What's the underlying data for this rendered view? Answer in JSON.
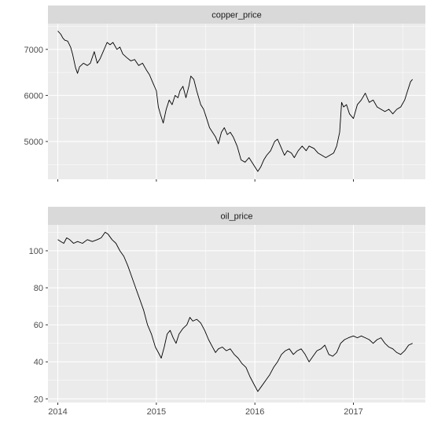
{
  "chart_data": {
    "type": "line",
    "x_ticks": [
      "2014",
      "2015",
      "2016",
      "2017"
    ],
    "x_range": [
      2013.9,
      2017.73
    ],
    "facets": [
      {
        "name": "copper_price",
        "ylim": [
          4180,
          7560
        ],
        "y_ticks": [
          5000,
          6000,
          7000
        ],
        "y_minor": [
          4500,
          5500,
          6500,
          7500
        ],
        "points": [
          [
            2014.0,
            7400
          ],
          [
            2014.03,
            7330
          ],
          [
            2014.05,
            7250
          ],
          [
            2014.07,
            7200
          ],
          [
            2014.1,
            7180
          ],
          [
            2014.13,
            7050
          ],
          [
            2014.15,
            6900
          ],
          [
            2014.18,
            6600
          ],
          [
            2014.2,
            6480
          ],
          [
            2014.22,
            6620
          ],
          [
            2014.26,
            6700
          ],
          [
            2014.3,
            6650
          ],
          [
            2014.33,
            6700
          ],
          [
            2014.37,
            6950
          ],
          [
            2014.4,
            6700
          ],
          [
            2014.43,
            6800
          ],
          [
            2014.46,
            6950
          ],
          [
            2014.5,
            7150
          ],
          [
            2014.53,
            7100
          ],
          [
            2014.56,
            7150
          ],
          [
            2014.6,
            7000
          ],
          [
            2014.63,
            7050
          ],
          [
            2014.66,
            6900
          ],
          [
            2014.7,
            6820
          ],
          [
            2014.74,
            6750
          ],
          [
            2014.78,
            6780
          ],
          [
            2014.82,
            6650
          ],
          [
            2014.86,
            6700
          ],
          [
            2014.9,
            6550
          ],
          [
            2014.93,
            6450
          ],
          [
            2014.96,
            6300
          ],
          [
            2015.0,
            6100
          ],
          [
            2015.02,
            5750
          ],
          [
            2015.04,
            5600
          ],
          [
            2015.07,
            5400
          ],
          [
            2015.1,
            5700
          ],
          [
            2015.13,
            5900
          ],
          [
            2015.16,
            5800
          ],
          [
            2015.19,
            6000
          ],
          [
            2015.22,
            5950
          ],
          [
            2015.24,
            6100
          ],
          [
            2015.27,
            6200
          ],
          [
            2015.3,
            5950
          ],
          [
            2015.33,
            6200
          ],
          [
            2015.35,
            6420
          ],
          [
            2015.38,
            6350
          ],
          [
            2015.41,
            6100
          ],
          [
            2015.45,
            5800
          ],
          [
            2015.48,
            5700
          ],
          [
            2015.51,
            5500
          ],
          [
            2015.54,
            5300
          ],
          [
            2015.57,
            5200
          ],
          [
            2015.6,
            5100
          ],
          [
            2015.63,
            4950
          ],
          [
            2015.66,
            5200
          ],
          [
            2015.69,
            5300
          ],
          [
            2015.72,
            5150
          ],
          [
            2015.75,
            5200
          ],
          [
            2015.78,
            5100
          ],
          [
            2015.82,
            4900
          ],
          [
            2015.86,
            4600
          ],
          [
            2015.9,
            4550
          ],
          [
            2015.94,
            4650
          ],
          [
            2015.97,
            4550
          ],
          [
            2016.0,
            4450
          ],
          [
            2016.03,
            4350
          ],
          [
            2016.06,
            4450
          ],
          [
            2016.09,
            4600
          ],
          [
            2016.12,
            4700
          ],
          [
            2016.16,
            4800
          ],
          [
            2016.2,
            5000
          ],
          [
            2016.23,
            5050
          ],
          [
            2016.26,
            4900
          ],
          [
            2016.3,
            4700
          ],
          [
            2016.33,
            4800
          ],
          [
            2016.37,
            4750
          ],
          [
            2016.4,
            4650
          ],
          [
            2016.44,
            4800
          ],
          [
            2016.48,
            4900
          ],
          [
            2016.52,
            4800
          ],
          [
            2016.55,
            4900
          ],
          [
            2016.6,
            4850
          ],
          [
            2016.64,
            4750
          ],
          [
            2016.68,
            4700
          ],
          [
            2016.72,
            4650
          ],
          [
            2016.76,
            4700
          ],
          [
            2016.8,
            4750
          ],
          [
            2016.83,
            4900
          ],
          [
            2016.86,
            5200
          ],
          [
            2016.88,
            5850
          ],
          [
            2016.9,
            5750
          ],
          [
            2016.93,
            5800
          ],
          [
            2016.96,
            5600
          ],
          [
            2017.0,
            5500
          ],
          [
            2017.04,
            5800
          ],
          [
            2017.08,
            5900
          ],
          [
            2017.12,
            6050
          ],
          [
            2017.16,
            5850
          ],
          [
            2017.2,
            5900
          ],
          [
            2017.24,
            5750
          ],
          [
            2017.28,
            5700
          ],
          [
            2017.32,
            5650
          ],
          [
            2017.36,
            5700
          ],
          [
            2017.4,
            5600
          ],
          [
            2017.44,
            5700
          ],
          [
            2017.48,
            5750
          ],
          [
            2017.52,
            5900
          ],
          [
            2017.55,
            6100
          ],
          [
            2017.58,
            6300
          ],
          [
            2017.6,
            6350
          ]
        ]
      },
      {
        "name": "oil_price",
        "ylim": [
          18,
          114
        ],
        "y_ticks": [
          20,
          40,
          60,
          80,
          100
        ],
        "y_minor": [
          30,
          50,
          70,
          90,
          110
        ],
        "points": [
          [
            2014.0,
            106
          ],
          [
            2014.03,
            105
          ],
          [
            2014.06,
            104
          ],
          [
            2014.09,
            107
          ],
          [
            2014.12,
            106
          ],
          [
            2014.16,
            104
          ],
          [
            2014.2,
            105
          ],
          [
            2014.25,
            104
          ],
          [
            2014.3,
            106
          ],
          [
            2014.35,
            105
          ],
          [
            2014.4,
            106
          ],
          [
            2014.44,
            107
          ],
          [
            2014.48,
            110
          ],
          [
            2014.51,
            109
          ],
          [
            2014.55,
            106
          ],
          [
            2014.59,
            104
          ],
          [
            2014.63,
            100
          ],
          [
            2014.67,
            97
          ],
          [
            2014.71,
            92
          ],
          [
            2014.75,
            86
          ],
          [
            2014.79,
            80
          ],
          [
            2014.83,
            74
          ],
          [
            2014.87,
            68
          ],
          [
            2014.91,
            60
          ],
          [
            2014.95,
            55
          ],
          [
            2014.99,
            48
          ],
          [
            2015.02,
            45
          ],
          [
            2015.05,
            42
          ],
          [
            2015.08,
            48
          ],
          [
            2015.11,
            55
          ],
          [
            2015.14,
            57
          ],
          [
            2015.17,
            53
          ],
          [
            2015.2,
            50
          ],
          [
            2015.23,
            55
          ],
          [
            2015.27,
            58
          ],
          [
            2015.31,
            60
          ],
          [
            2015.34,
            64
          ],
          [
            2015.37,
            62
          ],
          [
            2015.41,
            63
          ],
          [
            2015.45,
            61
          ],
          [
            2015.49,
            57
          ],
          [
            2015.53,
            52
          ],
          [
            2015.57,
            48
          ],
          [
            2015.6,
            45
          ],
          [
            2015.63,
            47
          ],
          [
            2015.67,
            48
          ],
          [
            2015.71,
            46
          ],
          [
            2015.75,
            47
          ],
          [
            2015.79,
            44
          ],
          [
            2015.83,
            42
          ],
          [
            2015.87,
            39
          ],
          [
            2015.91,
            37
          ],
          [
            2015.95,
            32
          ],
          [
            2015.99,
            28
          ],
          [
            2016.03,
            24
          ],
          [
            2016.07,
            27
          ],
          [
            2016.11,
            30
          ],
          [
            2016.15,
            33
          ],
          [
            2016.19,
            37
          ],
          [
            2016.23,
            40
          ],
          [
            2016.27,
            44
          ],
          [
            2016.31,
            46
          ],
          [
            2016.35,
            47
          ],
          [
            2016.39,
            44
          ],
          [
            2016.43,
            46
          ],
          [
            2016.47,
            47
          ],
          [
            2016.51,
            44
          ],
          [
            2016.55,
            40
          ],
          [
            2016.59,
            43
          ],
          [
            2016.63,
            46
          ],
          [
            2016.67,
            47
          ],
          [
            2016.71,
            49
          ],
          [
            2016.75,
            44
          ],
          [
            2016.79,
            43
          ],
          [
            2016.83,
            45
          ],
          [
            2016.87,
            50
          ],
          [
            2016.91,
            52
          ],
          [
            2016.95,
            53
          ],
          [
            2017.0,
            54
          ],
          [
            2017.04,
            53
          ],
          [
            2017.08,
            54
          ],
          [
            2017.12,
            53
          ],
          [
            2017.16,
            52
          ],
          [
            2017.2,
            50
          ],
          [
            2017.24,
            52
          ],
          [
            2017.28,
            53
          ],
          [
            2017.32,
            50
          ],
          [
            2017.36,
            48
          ],
          [
            2017.4,
            47
          ],
          [
            2017.44,
            45
          ],
          [
            2017.48,
            44
          ],
          [
            2017.52,
            46
          ],
          [
            2017.56,
            49
          ],
          [
            2017.6,
            50
          ]
        ]
      }
    ]
  }
}
